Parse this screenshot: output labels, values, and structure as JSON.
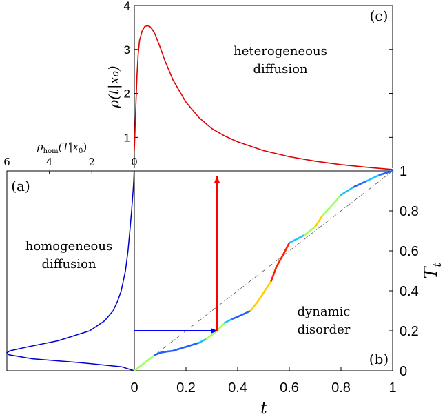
{
  "chart_data": [
    {
      "panel": "(c)",
      "type": "line",
      "title": "",
      "annotation": "heterogeneous diffusion",
      "annotation_lines": [
        "heterogeneous",
        "diffusion"
      ],
      "xlabel": "",
      "ylabel": "ρ(t|x₀)",
      "xlim": [
        0,
        1
      ],
      "ylim": [
        0.3,
        4
      ],
      "yticks": [
        1,
        2,
        3,
        4
      ],
      "grid": false,
      "series": [
        {
          "color": "#e00000",
          "x": [
            0.0,
            0.005,
            0.01,
            0.015,
            0.02,
            0.03,
            0.04,
            0.05,
            0.06,
            0.07,
            0.08,
            0.1,
            0.12,
            0.15,
            0.2,
            0.25,
            0.3,
            0.35,
            0.4,
            0.5,
            0.6,
            0.7,
            0.8,
            0.9,
            1.0
          ],
          "y": [
            0.7,
            1.6,
            2.4,
            2.9,
            3.2,
            3.42,
            3.52,
            3.54,
            3.52,
            3.45,
            3.35,
            3.05,
            2.72,
            2.3,
            1.8,
            1.45,
            1.2,
            1.03,
            0.9,
            0.7,
            0.56,
            0.46,
            0.38,
            0.32,
            0.27
          ]
        }
      ]
    },
    {
      "panel": "(a)",
      "type": "line",
      "orientation": "rotated",
      "title": "",
      "annotation": "homogeneous diffusion",
      "annotation_lines": [
        "homogeneous",
        "diffusion"
      ],
      "xlabel": "ρ_hom(T|x₀)",
      "xlabel_parts": {
        "sym": "ρ",
        "sub": "hom",
        "rest": "(T|x",
        "sub2": "0",
        "close": ")"
      },
      "xlim": [
        0,
        6
      ],
      "xaxis_reversed": true,
      "xticks": [
        6,
        4,
        2,
        0
      ],
      "ylim": [
        0,
        1
      ],
      "grid": false,
      "series": [
        {
          "color": "#0000cc",
          "T": [
            0.0,
            0.02,
            0.04,
            0.06,
            0.08,
            0.09,
            0.1,
            0.12,
            0.15,
            0.2,
            0.25,
            0.3,
            0.35,
            0.4,
            0.5,
            0.6,
            0.7,
            0.8,
            0.9,
            0.95,
            1.0
          ],
          "density": [
            0.0,
            0.6,
            2.5,
            4.8,
            5.9,
            6.0,
            5.85,
            5.0,
            3.6,
            2.1,
            1.4,
            1.0,
            0.78,
            0.62,
            0.42,
            0.3,
            0.21,
            0.13,
            0.06,
            0.03,
            0.01
          ]
        }
      ]
    },
    {
      "panel": "(b)",
      "type": "line",
      "title": "",
      "annotation": "dynamic disorder",
      "annotation_lines": [
        "dynamic",
        "disorder"
      ],
      "xlabel": "t",
      "ylabel": "T_t",
      "ylabel_parts": {
        "sym": "T",
        "sub": "t"
      },
      "xlim": [
        0,
        1
      ],
      "ylim": [
        0,
        1
      ],
      "xticks": [
        0,
        0.2,
        0.4,
        0.6,
        0.8,
        1
      ],
      "xtick_labels": [
        "0",
        "0.2",
        "0.4",
        "0.6",
        "0.8",
        "1"
      ],
      "yticks": [
        0,
        0.2,
        0.4,
        0.6,
        0.8,
        1
      ],
      "ytick_labels": [
        "0",
        "0.2",
        "0.4",
        "0.6",
        "0.8",
        "1"
      ],
      "grid": false,
      "series": [
        {
          "name_hidden": "T_t path (color-coded by local slope)",
          "x": [
            0.0,
            0.02,
            0.05,
            0.08,
            0.1,
            0.12,
            0.15,
            0.2,
            0.25,
            0.28,
            0.3,
            0.32,
            0.35,
            0.38,
            0.4,
            0.45,
            0.48,
            0.5,
            0.53,
            0.55,
            0.58,
            0.6,
            0.63,
            0.66,
            0.7,
            0.73,
            0.76,
            0.8,
            0.85,
            0.9,
            0.95,
            1.0
          ],
          "y": [
            0.0,
            0.02,
            0.05,
            0.08,
            0.09,
            0.095,
            0.1,
            0.12,
            0.14,
            0.16,
            0.18,
            0.2,
            0.24,
            0.26,
            0.27,
            0.3,
            0.35,
            0.39,
            0.45,
            0.52,
            0.59,
            0.64,
            0.66,
            0.68,
            0.72,
            0.78,
            0.82,
            0.88,
            0.92,
            0.95,
            0.98,
            1.0
          ],
          "colors_by_slope": {
            "low": "#2060ff",
            "mid_low": "#20c0ff",
            "mid": "#a0ff60",
            "mid_high": "#ffd000",
            "high": "#ff2000"
          }
        },
        {
          "name_hidden": "diagonal reference",
          "x": [
            0,
            1
          ],
          "y": [
            0,
            1
          ],
          "color": "#555555",
          "style": "dash-dot"
        }
      ],
      "arrows": [
        {
          "color": "#0000ff",
          "from": [
            0,
            0.2
          ],
          "to": [
            0.32,
            0.2
          ]
        },
        {
          "color": "#ff0000",
          "from": [
            0.32,
            0.2
          ],
          "to": [
            0.32,
            1.0
          ]
        }
      ]
    }
  ]
}
